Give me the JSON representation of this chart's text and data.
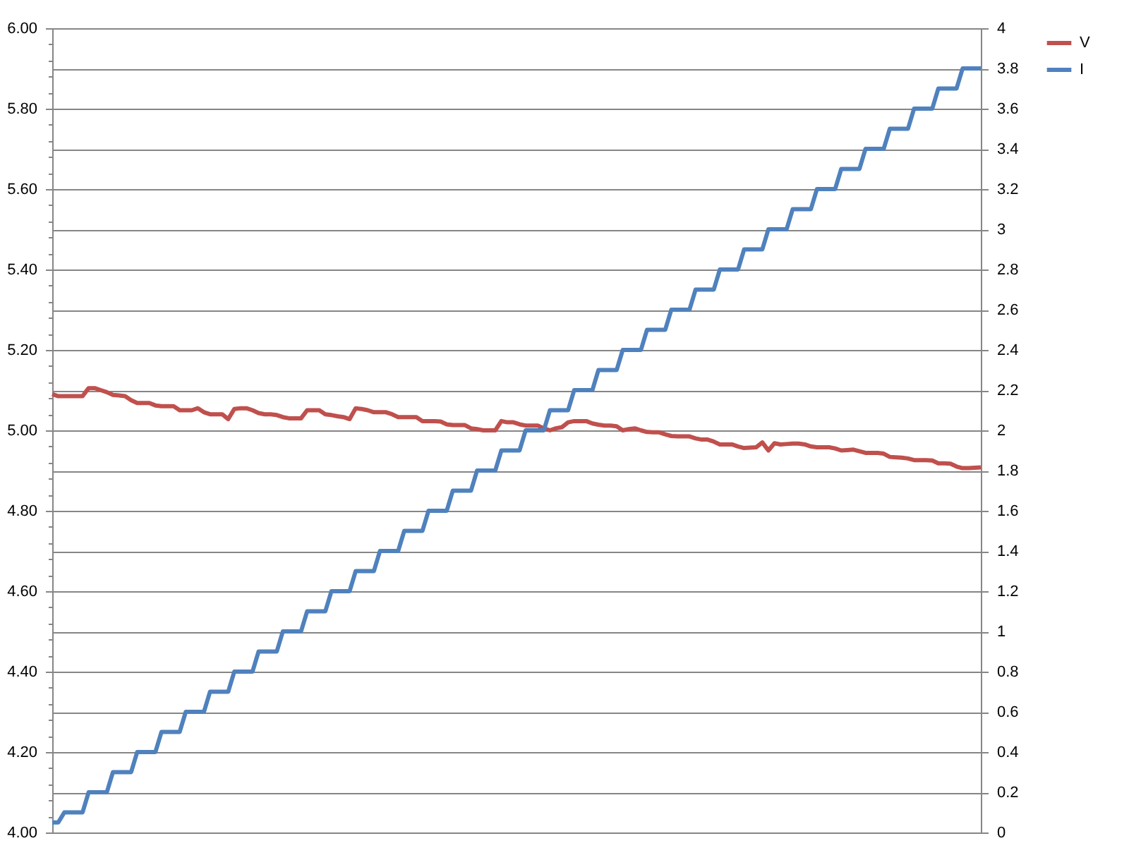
{
  "chart_data": {
    "type": "line",
    "categories": [
      null,
      null,
      null,
      null,
      null,
      null,
      null,
      null,
      null,
      null,
      null,
      null,
      null,
      null,
      null,
      null,
      null,
      null,
      null,
      null,
      null,
      null,
      null,
      null,
      null,
      null,
      null,
      null,
      null,
      null,
      null,
      null,
      null,
      null,
      null,
      null,
      null,
      null,
      null,
      null,
      null,
      null,
      null,
      null,
      null,
      null,
      null,
      null,
      null,
      null,
      null,
      null,
      null,
      null,
      null,
      null,
      null,
      null,
      null,
      null,
      null,
      null,
      null,
      null,
      null,
      null,
      null,
      null,
      null,
      null,
      null,
      null,
      null,
      null,
      null,
      null,
      null,
      null,
      null,
      null,
      null,
      null,
      null,
      null,
      null,
      null,
      null,
      null,
      null,
      null,
      null,
      null,
      null,
      null,
      null,
      null,
      null,
      null,
      null,
      null,
      null,
      null,
      null,
      null,
      null,
      null,
      null,
      null,
      null,
      null,
      null,
      null,
      null,
      null,
      null,
      null,
      null,
      null,
      null,
      null,
      null,
      null,
      null,
      null,
      null,
      null,
      null,
      null,
      null,
      null,
      null,
      null,
      null,
      null,
      null,
      null,
      null,
      null,
      null,
      null,
      null,
      null,
      null,
      null,
      null,
      null,
      null,
      null,
      null,
      null,
      null,
      null,
      null,
      null
    ],
    "series": [
      {
        "name": "V",
        "color": "#c0504d",
        "values": [
          5.09,
          5.085,
          5.085,
          5.085,
          5.085,
          5.085,
          5.105,
          5.105,
          5.1,
          5.095,
          5.088,
          5.087,
          5.085,
          5.075,
          5.068,
          5.068,
          5.068,
          5.062,
          5.06,
          5.06,
          5.06,
          5.05,
          5.05,
          5.05,
          5.055,
          5.045,
          5.04,
          5.04,
          5.04,
          5.028,
          5.053,
          5.055,
          5.055,
          5.05,
          5.043,
          5.04,
          5.04,
          5.038,
          5.033,
          5.03,
          5.03,
          5.03,
          5.05,
          5.05,
          5.05,
          5.04,
          5.038,
          5.035,
          5.033,
          5.028,
          5.055,
          5.053,
          5.05,
          5.045,
          5.045,
          5.045,
          5.04,
          5.033,
          5.033,
          5.033,
          5.033,
          5.023,
          5.023,
          5.023,
          5.022,
          5.015,
          5.013,
          5.013,
          5.013,
          5.005,
          5.003,
          5.0,
          5.0,
          5.0,
          5.023,
          5.02,
          5.02,
          5.015,
          5.012,
          5.012,
          5.012,
          5.005,
          5.0,
          5.005,
          5.008,
          5.02,
          5.023,
          5.023,
          5.023,
          5.017,
          5.014,
          5.012,
          5.012,
          5.01,
          5.0,
          5.003,
          5.005,
          5.0,
          4.996,
          4.995,
          4.995,
          4.99,
          4.986,
          4.985,
          4.985,
          4.985,
          4.98,
          4.977,
          4.977,
          4.972,
          4.965,
          4.965,
          4.965,
          4.96,
          4.956,
          4.957,
          4.958,
          4.97,
          4.95,
          4.968,
          4.965,
          4.966,
          4.967,
          4.967,
          4.965,
          4.96,
          4.958,
          4.958,
          4.958,
          4.955,
          4.95,
          4.951,
          4.952,
          4.948,
          4.944,
          4.944,
          4.944,
          4.942,
          4.934,
          4.933,
          4.932,
          4.93,
          4.926,
          4.926,
          4.926,
          4.925,
          4.918,
          4.918,
          4.917,
          4.91,
          4.906,
          4.906,
          4.907,
          4.908
        ]
      },
      {
        "name": "I",
        "color": "#4f81bd",
        "axis": "y2",
        "values": [
          0.05,
          0.05,
          0.1,
          0.1,
          0.1,
          0.1,
          0.2,
          0.2,
          0.2,
          0.2,
          0.3,
          0.3,
          0.3,
          0.3,
          0.4,
          0.4,
          0.4,
          0.4,
          0.5,
          0.5,
          0.5,
          0.5,
          0.6,
          0.6,
          0.6,
          0.6,
          0.7,
          0.7,
          0.7,
          0.7,
          0.8,
          0.8,
          0.8,
          0.8,
          0.9,
          0.9,
          0.9,
          0.9,
          1,
          1,
          1,
          1,
          1.1,
          1.1,
          1.1,
          1.1,
          1.2,
          1.2,
          1.2,
          1.2,
          1.3,
          1.3,
          1.3,
          1.3,
          1.4,
          1.4,
          1.4,
          1.4,
          1.5,
          1.5,
          1.5,
          1.5,
          1.6,
          1.6,
          1.6,
          1.6,
          1.7,
          1.7,
          1.7,
          1.7,
          1.8,
          1.8,
          1.8,
          1.8,
          1.9,
          1.9,
          1.9,
          1.9,
          2,
          2,
          2,
          2,
          2.1,
          2.1,
          2.1,
          2.1,
          2.2,
          2.2,
          2.2,
          2.2,
          2.3,
          2.3,
          2.3,
          2.3,
          2.4,
          2.4,
          2.4,
          2.4,
          2.5,
          2.5,
          2.5,
          2.5,
          2.6,
          2.6,
          2.6,
          2.6,
          2.7,
          2.7,
          2.7,
          2.7,
          2.8,
          2.8,
          2.8,
          2.8,
          2.9,
          2.9,
          2.9,
          2.9,
          3,
          3,
          3,
          3,
          3.1,
          3.1,
          3.1,
          3.1,
          3.2,
          3.2,
          3.2,
          3.2,
          3.3,
          3.3,
          3.3,
          3.3,
          3.4,
          3.4,
          3.4,
          3.4,
          3.5,
          3.5,
          3.5,
          3.5,
          3.6,
          3.6,
          3.6,
          3.6,
          3.7,
          3.7,
          3.7,
          3.7,
          3.8,
          3.8,
          3.8,
          3.8
        ]
      }
    ],
    "ylim": [
      4,
      6
    ],
    "yticks": [
      {
        "value": 4,
        "label": "4.00"
      },
      {
        "value": 4.04,
        "label": null
      },
      {
        "value": 4.08,
        "label": null
      },
      {
        "value": 4.12,
        "label": null
      },
      {
        "value": 4.16,
        "label": null
      },
      {
        "value": 4.2,
        "label": "4.20"
      },
      {
        "value": 4.24,
        "label": null
      },
      {
        "value": 4.28,
        "label": null
      },
      {
        "value": 4.32,
        "label": null
      },
      {
        "value": 4.36,
        "label": null
      },
      {
        "value": 4.4,
        "label": "4.40"
      },
      {
        "value": 4.44,
        "label": null
      },
      {
        "value": 4.48,
        "label": null
      },
      {
        "value": 4.52,
        "label": null
      },
      {
        "value": 4.56,
        "label": null
      },
      {
        "value": 4.6,
        "label": "4.60"
      },
      {
        "value": 4.64,
        "label": null
      },
      {
        "value": 4.68,
        "label": null
      },
      {
        "value": 4.72,
        "label": null
      },
      {
        "value": 4.76,
        "label": null
      },
      {
        "value": 4.8,
        "label": "4.80"
      },
      {
        "value": 4.84,
        "label": null
      },
      {
        "value": 4.88,
        "label": null
      },
      {
        "value": 4.92,
        "label": null
      },
      {
        "value": 4.96,
        "label": null
      },
      {
        "value": 5,
        "label": "5.00"
      },
      {
        "value": 5.04,
        "label": null
      },
      {
        "value": 5.08,
        "label": null
      },
      {
        "value": 5.12,
        "label": null
      },
      {
        "value": 5.16,
        "label": null
      },
      {
        "value": 5.2,
        "label": "5.20"
      },
      {
        "value": 5.24,
        "label": null
      },
      {
        "value": 5.28,
        "label": null
      },
      {
        "value": 5.32,
        "label": null
      },
      {
        "value": 5.36,
        "label": null
      },
      {
        "value": 5.4,
        "label": "5.40"
      },
      {
        "value": 5.44,
        "label": null
      },
      {
        "value": 5.48,
        "label": null
      },
      {
        "value": 5.52,
        "label": null
      },
      {
        "value": 5.56,
        "label": null
      },
      {
        "value": 5.6,
        "label": "5.60"
      },
      {
        "value": 5.64,
        "label": null
      },
      {
        "value": 5.68,
        "label": null
      },
      {
        "value": 5.72,
        "label": null
      },
      {
        "value": 5.76,
        "label": null
      },
      {
        "value": 5.8,
        "label": "5.80"
      },
      {
        "value": 5.84,
        "label": null
      },
      {
        "value": 5.88,
        "label": null
      },
      {
        "value": 5.92,
        "label": null
      },
      {
        "value": 5.96,
        "label": null
      },
      {
        "value": 6,
        "label": "6.00"
      }
    ],
    "y2lim": [
      0,
      4
    ],
    "y2ticks": [
      0,
      0.2,
      0.4,
      0.6,
      0.8,
      1,
      1.2,
      1.4,
      1.6,
      1.8,
      2,
      2.2,
      2.4,
      2.6,
      2.8,
      3,
      3.2,
      3.4,
      3.6,
      3.8,
      4
    ],
    "grid": "y",
    "legend": "right"
  }
}
